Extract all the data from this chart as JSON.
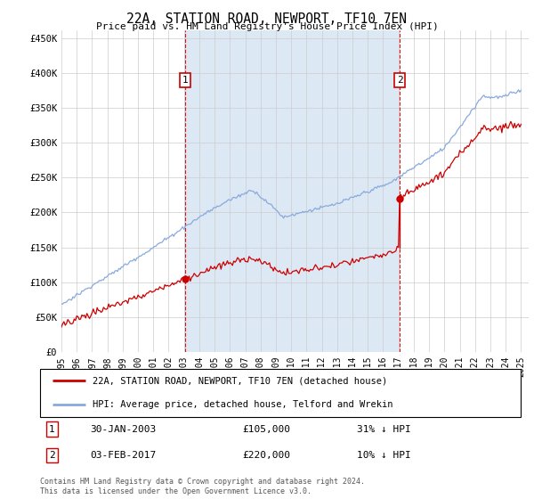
{
  "title": "22A, STATION ROAD, NEWPORT, TF10 7EN",
  "subtitle": "Price paid vs. HM Land Registry's House Price Index (HPI)",
  "ylabel_ticks": [
    0,
    50000,
    100000,
    150000,
    200000,
    250000,
    300000,
    350000,
    400000,
    450000
  ],
  "ylabel_labels": [
    "£0",
    "£50K",
    "£100K",
    "£150K",
    "£200K",
    "£250K",
    "£300K",
    "£350K",
    "£400K",
    "£450K"
  ],
  "ylim": [
    0,
    462000
  ],
  "xlim_start": 1995.0,
  "xlim_end": 2025.5,
  "price_paid_color": "#cc0000",
  "hpi_color": "#88aadd",
  "shade_color": "#dde8f5",
  "background_color": "#ffffff",
  "grid_color": "#cccccc",
  "marker_color": "#cc0000",
  "vline_color": "#cc0000",
  "legend_label_red": "22A, STATION ROAD, NEWPORT, TF10 7EN (detached house)",
  "legend_label_blue": "HPI: Average price, detached house, Telford and Wrekin",
  "purchase1_year": 2003.08,
  "purchase1_price": 105000,
  "purchase1_label": "30-JAN-2003",
  "purchase1_price_label": "£105,000",
  "purchase1_hpi_label": "31% ↓ HPI",
  "purchase2_year": 2017.09,
  "purchase2_price": 220000,
  "purchase2_label": "03-FEB-2017",
  "purchase2_price_label": "£220,000",
  "purchase2_hpi_label": "10% ↓ HPI",
  "footer": "Contains HM Land Registry data © Crown copyright and database right 2024.\nThis data is licensed under the Open Government Licence v3.0.",
  "xtick_years": [
    1995,
    1996,
    1997,
    1998,
    1999,
    2000,
    2001,
    2002,
    2003,
    2004,
    2005,
    2006,
    2007,
    2008,
    2009,
    2010,
    2011,
    2012,
    2013,
    2014,
    2015,
    2016,
    2017,
    2018,
    2019,
    2020,
    2021,
    2022,
    2023,
    2024,
    2025
  ]
}
